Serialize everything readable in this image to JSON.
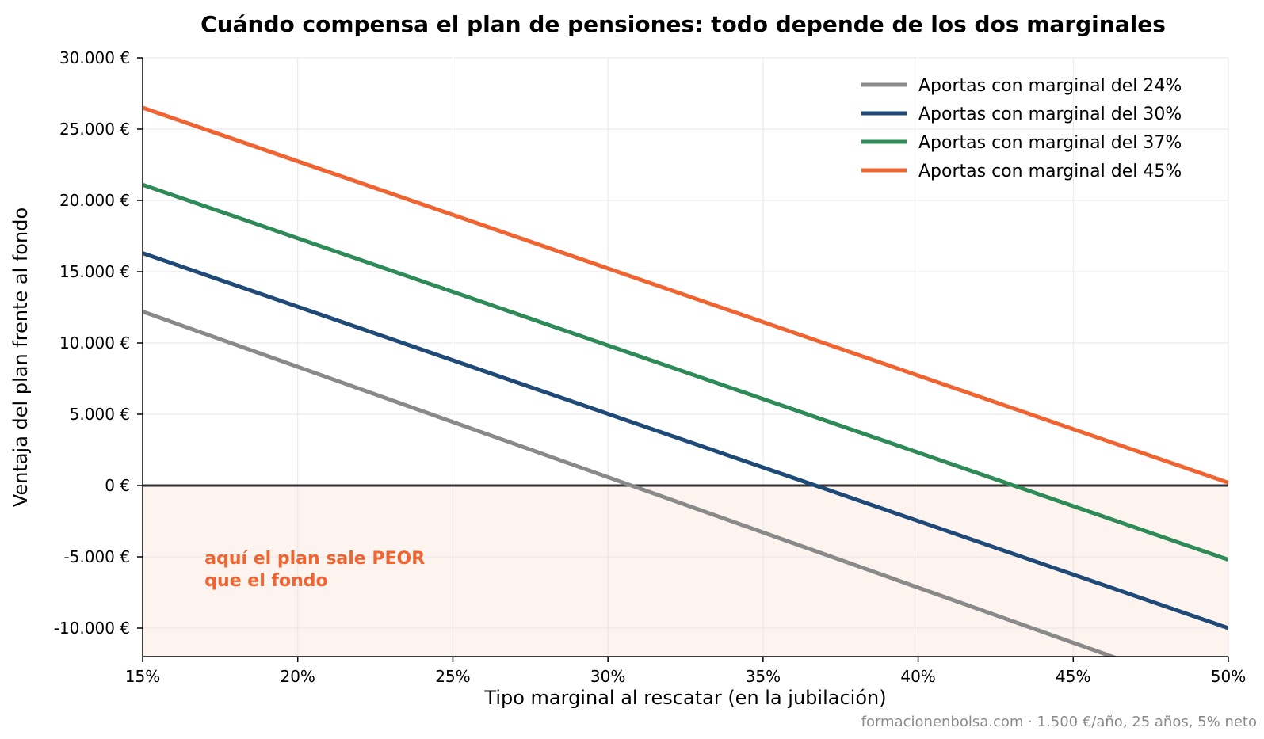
{
  "chart_data": {
    "type": "line",
    "title": "Cuándo compensa el plan de pensiones: todo depende de los dos marginales",
    "xlabel": "Tipo marginal al rescatar (en la jubilación)",
    "ylabel": "Ventaja del plan frente al fondo",
    "xlim": [
      15,
      50
    ],
    "ylim": [
      -12000,
      30000
    ],
    "x_ticks": [
      15,
      20,
      25,
      30,
      35,
      40,
      45,
      50
    ],
    "x_tick_labels": [
      "15%",
      "20%",
      "25%",
      "30%",
      "35%",
      "40%",
      "45%",
      "50%"
    ],
    "y_ticks": [
      -10000,
      -5000,
      0,
      5000,
      10000,
      15000,
      20000,
      25000,
      30000
    ],
    "y_tick_labels": [
      "-10.000 €",
      "-5.000 €",
      "0 €",
      "5.000 €",
      "10.000 €",
      "15.000 €",
      "20.000 €",
      "25.000 €",
      "30.000 €"
    ],
    "grid": true,
    "legend_position": "top-right",
    "zero_line": 0,
    "negative_region_color": "#fdf3ef",
    "series": [
      {
        "name": "Aportas con marginal del 24%",
        "color": "#8a8a8a",
        "x": [
          15,
          50
        ],
        "y": [
          12200,
          -14900
        ]
      },
      {
        "name": "Aportas con marginal del 30%",
        "color": "#1f4a78",
        "x": [
          15,
          50
        ],
        "y": [
          16300,
          -10000
        ]
      },
      {
        "name": "Aportas con marginal del 37%",
        "color": "#2e8b57",
        "x": [
          15,
          50
        ],
        "y": [
          21100,
          -5200
        ]
      },
      {
        "name": "Aportas con marginal del 45%",
        "color": "#f06432",
        "x": [
          15,
          50
        ],
        "y": [
          26500,
          200
        ]
      }
    ],
    "annotation": {
      "lines": [
        "aquí el plan sale PEOR",
        "que el fondo"
      ],
      "color": "#f06432",
      "x": 17,
      "y": -5500
    }
  },
  "footer": "formacionenbolsa.com · 1.500 €/año, 25 años, 5% neto"
}
